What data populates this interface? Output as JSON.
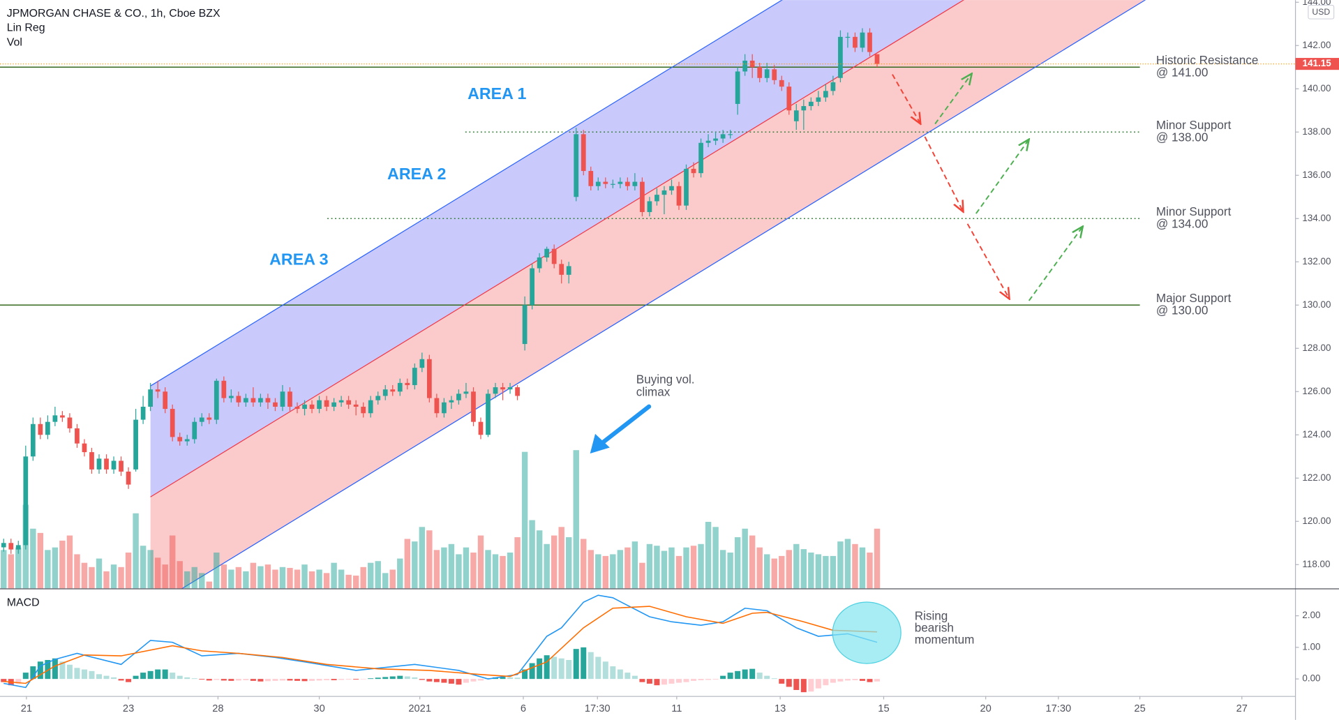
{
  "header": {
    "symbol": "JPMORGAN CHASE & CO., 1h, Cboe BZX",
    "indicator_1": "Lin Reg",
    "indicator_2": "Vol"
  },
  "annotations": {
    "area_1": "AREA 1",
    "area_2": "AREA 2",
    "area_3": "AREA 3",
    "volume_note": [
      "Buying vol.",
      "climax"
    ],
    "macd_note": [
      "Rising",
      "bearish",
      "momentum"
    ]
  },
  "chart_data": [
    {
      "type": "candlestick",
      "y_unit": "USD",
      "up_color": "#26a69a",
      "down_color": "#ef5350",
      "xlim": [
        -0.5,
        176
      ],
      "ylim": [
        116.9,
        144.1
      ],
      "yticks": [
        {
          "value": 118,
          "label": "118.00"
        },
        {
          "value": 120,
          "label": "120.00"
        },
        {
          "value": 122,
          "label": "122.00"
        },
        {
          "value": 124,
          "label": "124.00"
        },
        {
          "value": 126,
          "label": "126.00"
        },
        {
          "value": 128,
          "label": "128.00"
        },
        {
          "value": 130,
          "label": "130.00"
        },
        {
          "value": 132,
          "label": "132.00"
        },
        {
          "value": 134,
          "label": "134.00"
        },
        {
          "value": 136,
          "label": "136.00"
        },
        {
          "value": 138,
          "label": "138.00"
        },
        {
          "value": 140,
          "label": "140.00"
        },
        {
          "value": 142,
          "label": "142.00"
        },
        {
          "value": 144,
          "label": "144.00"
        }
      ],
      "open": [
        118.8,
        119.0,
        118.7,
        118.9,
        123.0,
        124.5,
        124.0,
        124.6,
        124.9,
        124.8,
        124.3,
        123.6,
        123.2,
        122.4,
        122.9,
        122.4,
        122.8,
        122.3,
        122.4,
        124.7,
        125.3,
        126.1,
        126.0,
        125.2,
        123.9,
        123.7,
        123.8,
        124.6,
        124.8,
        124.7,
        126.5,
        125.7,
        125.8,
        125.5,
        125.7,
        125.5,
        125.7,
        125.5,
        125.3,
        126.0,
        125.3,
        125.2,
        125.4,
        125.2,
        125.6,
        125.3,
        125.5,
        125.6,
        125.4,
        125.3,
        125.0,
        125.6,
        125.8,
        126.1,
        126.0,
        126.4,
        126.3,
        127.1,
        127.5,
        125.7,
        125.0,
        125.5,
        125.6,
        125.9,
        126.0,
        124.6,
        124.0,
        125.9,
        126.2,
        126.1,
        126.2,
        128.2,
        130.0,
        131.7,
        132.2,
        132.6,
        131.9,
        131.4,
        135.0,
        137.9,
        136.2,
        135.5,
        135.7,
        135.6,
        135.6,
        135.7,
        135.5,
        135.7,
        134.3,
        134.8,
        135.1,
        135.3,
        135.5,
        134.6,
        136.3,
        136.1,
        137.5,
        137.6,
        137.7,
        137.9,
        139.3,
        140.8,
        141.3,
        141.0,
        140.5,
        140.9,
        140.4,
        140.1,
        138.5,
        139.0,
        139.2,
        139.4,
        139.6,
        139.9,
        140.5,
        142.4,
        142.4,
        141.9,
        142.6,
        141.6
      ],
      "high": [
        119.2,
        119.2,
        119.1,
        123.5,
        124.8,
        124.8,
        124.9,
        125.3,
        125.1,
        125.0,
        124.5,
        123.8,
        123.4,
        123.1,
        123.1,
        123.0,
        123.0,
        122.5,
        125.2,
        125.8,
        126.4,
        126.5,
        126.2,
        125.4,
        124.1,
        124.0,
        124.8,
        125.0,
        125.0,
        126.6,
        126.7,
        126.1,
        126.0,
        125.9,
        126.2,
        125.9,
        125.9,
        125.7,
        126.3,
        126.2,
        125.5,
        125.6,
        125.6,
        125.8,
        125.8,
        125.7,
        125.8,
        125.8,
        125.6,
        125.5,
        125.8,
        126.0,
        126.3,
        126.3,
        126.6,
        126.6,
        127.3,
        127.8,
        127.7,
        125.9,
        125.7,
        125.8,
        126.1,
        126.4,
        126.2,
        124.8,
        126.1,
        126.4,
        126.4,
        126.4,
        126.3,
        130.4,
        131.9,
        132.4,
        132.7,
        132.8,
        132.1,
        132.0,
        138.2,
        138.1,
        136.4,
        135.9,
        135.9,
        135.8,
        135.9,
        135.9,
        136.1,
        135.9,
        135.0,
        135.4,
        135.5,
        135.8,
        135.7,
        136.5,
        136.6,
        137.7,
        137.9,
        138.0,
        138.1,
        138.1,
        141.0,
        141.6,
        141.6,
        141.2,
        141.2,
        141.1,
        140.6,
        140.3,
        139.3,
        139.5,
        139.6,
        139.9,
        140.2,
        140.6,
        142.7,
        142.6,
        142.6,
        142.8,
        142.8,
        141.6
      ],
      "low": [
        118.6,
        118.5,
        118.5,
        118.7,
        122.8,
        123.8,
        123.8,
        124.4,
        124.6,
        124.1,
        123.4,
        123.0,
        122.2,
        122.2,
        122.2,
        122.2,
        122.1,
        121.5,
        122.3,
        124.5,
        125.1,
        125.7,
        125.0,
        123.7,
        123.5,
        123.5,
        123.6,
        124.4,
        124.5,
        124.5,
        125.5,
        125.5,
        125.3,
        125.3,
        125.3,
        125.3,
        125.2,
        125.1,
        125.1,
        125.1,
        125.0,
        124.9,
        125.0,
        125.0,
        125.1,
        125.1,
        125.3,
        125.2,
        124.9,
        124.8,
        124.8,
        125.4,
        125.6,
        125.8,
        125.8,
        126.1,
        126.1,
        126.9,
        125.5,
        124.8,
        124.8,
        125.2,
        125.4,
        125.7,
        124.4,
        123.8,
        123.9,
        125.7,
        125.6,
        125.9,
        125.6,
        127.9,
        129.8,
        131.5,
        132.0,
        131.7,
        131.0,
        131.0,
        134.8,
        136.0,
        135.3,
        135.3,
        135.4,
        135.4,
        135.4,
        135.3,
        135.3,
        134.1,
        134.1,
        134.6,
        134.2,
        135.1,
        134.4,
        134.4,
        135.9,
        135.9,
        137.3,
        137.4,
        137.5,
        137.7,
        138.8,
        140.6,
        140.5,
        140.3,
        140.3,
        140.2,
        139.9,
        138.8,
        138.1,
        138.1,
        139.0,
        139.2,
        139.4,
        139.7,
        140.3,
        141.9,
        141.7,
        141.7,
        141.5,
        141.0
      ],
      "close": [
        119.0,
        118.7,
        118.9,
        123.0,
        124.5,
        124.0,
        124.6,
        124.9,
        124.8,
        124.3,
        123.6,
        123.2,
        122.4,
        122.9,
        122.4,
        122.8,
        122.3,
        121.7,
        124.7,
        125.3,
        126.1,
        126.0,
        125.2,
        123.9,
        123.7,
        123.8,
        124.6,
        124.8,
        124.7,
        126.5,
        125.7,
        125.8,
        125.5,
        125.7,
        125.5,
        125.7,
        125.5,
        125.3,
        126.0,
        125.3,
        125.2,
        125.4,
        125.2,
        125.6,
        125.3,
        125.5,
        125.6,
        125.4,
        125.3,
        125.0,
        125.6,
        125.8,
        126.1,
        126.0,
        126.4,
        126.3,
        127.1,
        127.5,
        125.7,
        125.0,
        125.5,
        125.6,
        125.9,
        126.0,
        124.6,
        124.0,
        125.9,
        126.2,
        126.1,
        126.2,
        125.8,
        130.0,
        131.7,
        132.2,
        132.6,
        131.9,
        131.4,
        131.8,
        137.9,
        136.2,
        135.5,
        135.7,
        135.6,
        135.6,
        135.7,
        135.5,
        135.7,
        134.3,
        134.8,
        135.1,
        135.3,
        135.5,
        134.6,
        136.3,
        136.1,
        137.5,
        137.6,
        137.7,
        137.9,
        137.9,
        140.8,
        141.3,
        141.0,
        140.5,
        140.9,
        140.4,
        140.1,
        139.0,
        139.0,
        139.2,
        139.4,
        139.6,
        139.9,
        140.3,
        142.4,
        142.4,
        141.9,
        142.6,
        141.7,
        141.15
      ],
      "volume": [
        45,
        40,
        48,
        98,
        70,
        65,
        45,
        48,
        56,
        62,
        40,
        30,
        25,
        35,
        20,
        28,
        25,
        42,
        88,
        50,
        45,
        36,
        28,
        62,
        32,
        20,
        25,
        18,
        8,
        42,
        28,
        22,
        25,
        20,
        30,
        26,
        28,
        22,
        25,
        24,
        22,
        28,
        20,
        22,
        18,
        30,
        22,
        16,
        15,
        25,
        30,
        32,
        18,
        22,
        35,
        58,
        55,
        72,
        68,
        45,
        48,
        52,
        40,
        48,
        42,
        62,
        45,
        40,
        38,
        42,
        60,
        160,
        80,
        68,
        52,
        62,
        72,
        60,
        162,
        58,
        45,
        40,
        38,
        40,
        45,
        48,
        55,
        30,
        52,
        50,
        44,
        48,
        38,
        48,
        50,
        52,
        78,
        72,
        45,
        42,
        60,
        70,
        62,
        48,
        40,
        35,
        38,
        45,
        52,
        46,
        42,
        40,
        38,
        38,
        55,
        58,
        52,
        48,
        42,
        70
      ],
      "regression": {
        "x": [
          20,
          119
        ],
        "values": [
          121.13,
          141.66
        ],
        "deviation": 5.13,
        "line_color": "#2962ff",
        "center_color": "#f23645",
        "upper_fill": "#c9c9fb",
        "lower_fill": "#fbcaca"
      },
      "last_price_color": "#ff9800",
      "levels": [
        {
          "value": 141,
          "style": "solid",
          "color": "#33691e",
          "x_start": -0.5,
          "x_end": 154.8,
          "labels": [
            "Historic Resistance",
            "@ 141.00"
          ]
        },
        {
          "value": 138,
          "style": "dotted",
          "color": "#2e7d32",
          "x_start": 62.9,
          "x_end": 154.8,
          "labels": [
            "Minor Support",
            "@ 138.00"
          ]
        },
        {
          "value": 134,
          "style": "dotted",
          "color": "#2e7d32",
          "x_start": 44.1,
          "x_end": 154.8,
          "labels": [
            "Minor Support",
            "@ 134.00"
          ]
        },
        {
          "value": 130,
          "style": "solid",
          "color": "#33691e",
          "x_start": -0.5,
          "x_end": 154.8,
          "labels": [
            "Major Support",
            "@ 130.00"
          ]
        }
      ]
    },
    {
      "type": "macd",
      "title": "MACD",
      "xlim": [
        -0.5,
        176
      ],
      "ylim": [
        -0.54,
        2.84
      ],
      "yticks": [
        {
          "value": 0,
          "label": "0.00"
        },
        {
          "value": 1,
          "label": "1.00"
        },
        {
          "value": 2,
          "label": "2.00"
        }
      ],
      "xticks": [
        {
          "value": 3.1,
          "label": "21"
        },
        {
          "value": 17,
          "label": "23"
        },
        {
          "value": 29.2,
          "label": "28"
        },
        {
          "value": 43,
          "label": "30"
        },
        {
          "value": 56.7,
          "label": "2021"
        },
        {
          "value": 70.8,
          "label": "6"
        },
        {
          "value": 80.9,
          "label": "17:30"
        },
        {
          "value": 91.7,
          "label": "11"
        },
        {
          "value": 105.8,
          "label": "13"
        },
        {
          "value": 119.9,
          "label": "15"
        },
        {
          "value": 133.8,
          "label": "20"
        },
        {
          "value": 143.7,
          "label": "17:30"
        },
        {
          "value": 154.8,
          "label": "25"
        },
        {
          "value": 168.7,
          "label": "27"
        }
      ],
      "series": [
        {
          "color": "#2196f3",
          "x": [
            0,
            3,
            5,
            7,
            10,
            16,
            20,
            23,
            27,
            32,
            37,
            41,
            48,
            56,
            62,
            66,
            70,
            74,
            76,
            79,
            81,
            83,
            88,
            91,
            95,
            98,
            101,
            104,
            108,
            111,
            115,
            119
          ],
          "values": [
            -0.14,
            -0.27,
            0.41,
            0.62,
            0.81,
            0.46,
            1.22,
            1.16,
            0.73,
            0.81,
            0.68,
            0.54,
            0.27,
            0.46,
            0.27,
            0.0,
            0.14,
            1.35,
            1.62,
            2.43,
            2.65,
            2.57,
            1.97,
            1.81,
            1.7,
            1.81,
            2.24,
            2.16,
            1.62,
            1.35,
            1.43,
            1.16
          ]
        },
        {
          "color": "#ff6d00",
          "x": [
            0,
            3,
            7,
            11,
            16,
            23,
            27,
            32,
            38,
            44,
            51,
            58,
            65,
            69,
            74,
            79,
            83,
            88,
            93,
            98,
            102,
            104,
            109,
            113,
            119
          ],
          "values": [
            -0.08,
            -0.14,
            0.41,
            0.76,
            0.73,
            1.05,
            0.89,
            0.81,
            0.68,
            0.46,
            0.32,
            0.27,
            0.14,
            0.08,
            0.54,
            1.62,
            2.24,
            2.3,
            1.97,
            1.76,
            2.08,
            2.11,
            1.81,
            1.54,
            1.49
          ]
        }
      ],
      "histogram": [
        -0.1,
        -0.2,
        -0.15,
        0.2,
        0.4,
        0.55,
        0.6,
        0.65,
        0.55,
        0.45,
        0.35,
        0.3,
        0.25,
        0.15,
        0.1,
        0.05,
        -0.05,
        -0.1,
        0.1,
        0.2,
        0.25,
        0.3,
        0.3,
        0.2,
        0.1,
        0.05,
        0.02,
        -0.02,
        -0.05,
        -0.03,
        -0.05,
        -0.06,
        -0.05,
        -0.04,
        -0.06,
        -0.08,
        -0.07,
        -0.06,
        -0.05,
        -0.05,
        -0.06,
        -0.07,
        -0.06,
        -0.05,
        -0.04,
        -0.04,
        -0.03,
        -0.02,
        -0.02,
        -0.01,
        0.02,
        0.04,
        0.06,
        0.08,
        0.1,
        0.08,
        0.05,
        -0.03,
        -0.08,
        -0.1,
        -0.12,
        -0.15,
        -0.18,
        -0.12,
        -0.08,
        -0.05,
        0.02,
        0.05,
        0.06,
        0.05,
        0.04,
        0.3,
        0.5,
        0.65,
        0.75,
        0.7,
        0.65,
        0.6,
        0.95,
        1.0,
        0.85,
        0.7,
        0.55,
        0.4,
        0.3,
        0.2,
        0.1,
        -0.1,
        -0.15,
        -0.2,
        -0.18,
        -0.15,
        -0.12,
        -0.1,
        -0.06,
        -0.04,
        -0.03,
        -0.02,
        0.1,
        0.2,
        0.25,
        0.3,
        0.32,
        0.2,
        0.1,
        0.02,
        -0.15,
        -0.25,
        -0.35,
        -0.42,
        -0.4,
        -0.3,
        -0.2,
        -0.12,
        -0.08,
        -0.05,
        -0.04,
        -0.06,
        -0.1,
        -0.08
      ]
    }
  ]
}
